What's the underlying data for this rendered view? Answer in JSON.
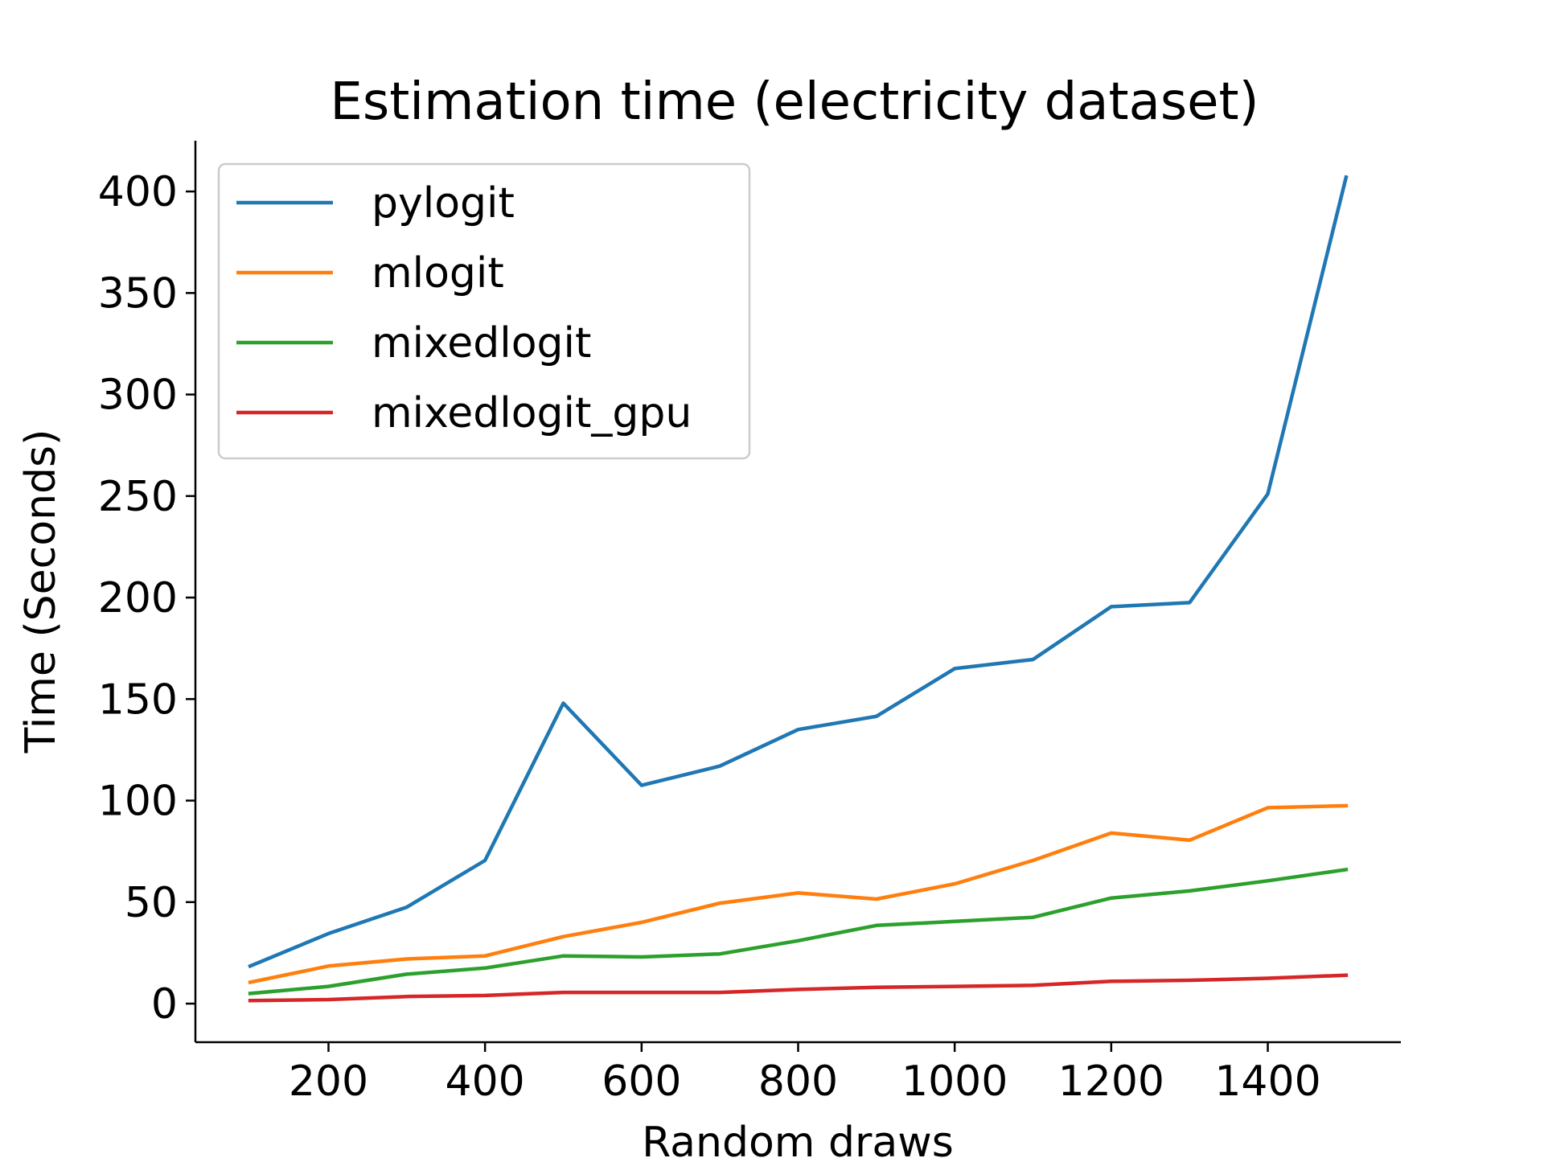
{
  "chart_data": {
    "type": "line",
    "title": "Estimation time (electricity dataset)",
    "xlabel": "Random draws",
    "ylabel": "Time (Seconds)",
    "xlim": [
      30,
      1570
    ],
    "ylim": [
      -19,
      425
    ],
    "xticks": [
      200,
      400,
      600,
      800,
      1000,
      1200,
      1400
    ],
    "yticks": [
      0,
      50,
      100,
      150,
      200,
      250,
      300,
      350,
      400
    ],
    "grid": false,
    "legend_position": "upper-left",
    "x": [
      100,
      200,
      300,
      400,
      500,
      600,
      700,
      800,
      900,
      1000,
      1100,
      1200,
      1300,
      1400,
      1500
    ],
    "series": [
      {
        "name": "pylogit",
        "color": "#1f77b4",
        "values": [
          18.5,
          34.5,
          47.5,
          70.5,
          148,
          107.5,
          117,
          135,
          141.5,
          165,
          169.5,
          195.5,
          197.5,
          251,
          407
        ]
      },
      {
        "name": "mlogit",
        "color": "#ff7f0e",
        "values": [
          10.5,
          18.5,
          22,
          23.5,
          33,
          40,
          49.5,
          54.5,
          51.5,
          59,
          70.5,
          84,
          80.5,
          96.5,
          97.5
        ]
      },
      {
        "name": "mixedlogit",
        "color": "#2ca02c",
        "values": [
          5,
          8.5,
          14.5,
          17.5,
          23.5,
          23,
          24.5,
          31,
          38.5,
          40.5,
          42.5,
          52,
          55.5,
          60.5,
          66
        ]
      },
      {
        "name": "mixedlogit_gpu",
        "color": "#d62728",
        "values": [
          1.5,
          2,
          3.5,
          4,
          5.5,
          5.5,
          5.5,
          7,
          8,
          8.5,
          9,
          11,
          11.5,
          12.5,
          14
        ]
      }
    ]
  }
}
